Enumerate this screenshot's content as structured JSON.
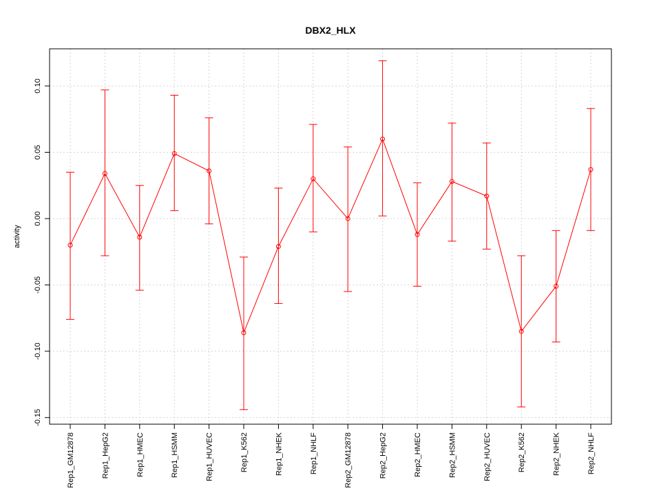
{
  "chart_data": {
    "type": "line",
    "title": "DBX2_HLX",
    "xlabel": "",
    "ylabel": "activity",
    "ylim": [
      -0.155,
      0.128
    ],
    "yticks": [
      -0.15,
      -0.1,
      -0.05,
      0.0,
      0.05,
      0.1
    ],
    "ytick_labels": [
      "-0.15",
      "-0.10",
      "-0.05",
      "0.00",
      "0.05",
      "0.10"
    ],
    "grid": true,
    "categories": [
      "Rep1_GM12878",
      "Rep1_HepG2",
      "Rep1_HMEC",
      "Rep1_HSMM",
      "Rep1_HUVEC",
      "Rep1_K562",
      "Rep1_NHEK",
      "Rep1_NHLF",
      "Rep2_GM12878",
      "Rep2_HepG2",
      "Rep2_HMEC",
      "Rep2_HSMM",
      "Rep2_HUVEC",
      "Rep2_K562",
      "Rep2_NHEK",
      "Rep2_NHLF"
    ],
    "series": [
      {
        "color": "#ff0000",
        "values": [
          -0.02,
          0.034,
          -0.014,
          0.049,
          0.036,
          -0.086,
          -0.021,
          0.03,
          0.0,
          0.06,
          -0.012,
          0.028,
          0.017,
          -0.085,
          -0.051,
          0.037
        ],
        "upper": [
          0.035,
          0.097,
          0.025,
          0.093,
          0.076,
          -0.029,
          0.023,
          0.071,
          0.054,
          0.119,
          0.027,
          0.072,
          0.057,
          -0.028,
          -0.009,
          0.083
        ],
        "lower": [
          -0.076,
          -0.028,
          -0.054,
          0.006,
          -0.004,
          -0.144,
          -0.064,
          -0.01,
          -0.055,
          0.002,
          -0.051,
          -0.017,
          -0.023,
          -0.142,
          -0.093,
          -0.009
        ]
      }
    ]
  }
}
